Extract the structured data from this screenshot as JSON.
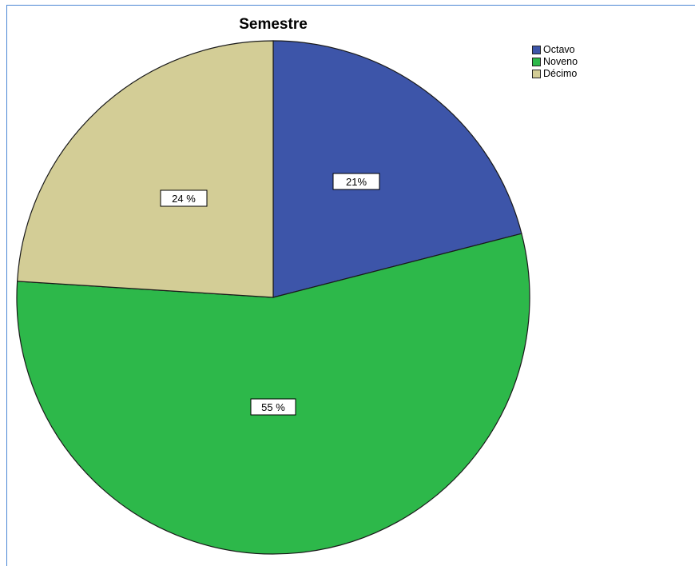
{
  "chart_data": {
    "type": "pie",
    "title": "Semestre",
    "categories": [
      "Octavo",
      "Noveno",
      "Décimo"
    ],
    "values": [
      21,
      55,
      24
    ],
    "labels": [
      "21%",
      "55 %",
      "24 %"
    ],
    "colors": [
      "#3d55a9",
      "#2db84a",
      "#d3cd96"
    ],
    "legend_position": "top-right"
  }
}
